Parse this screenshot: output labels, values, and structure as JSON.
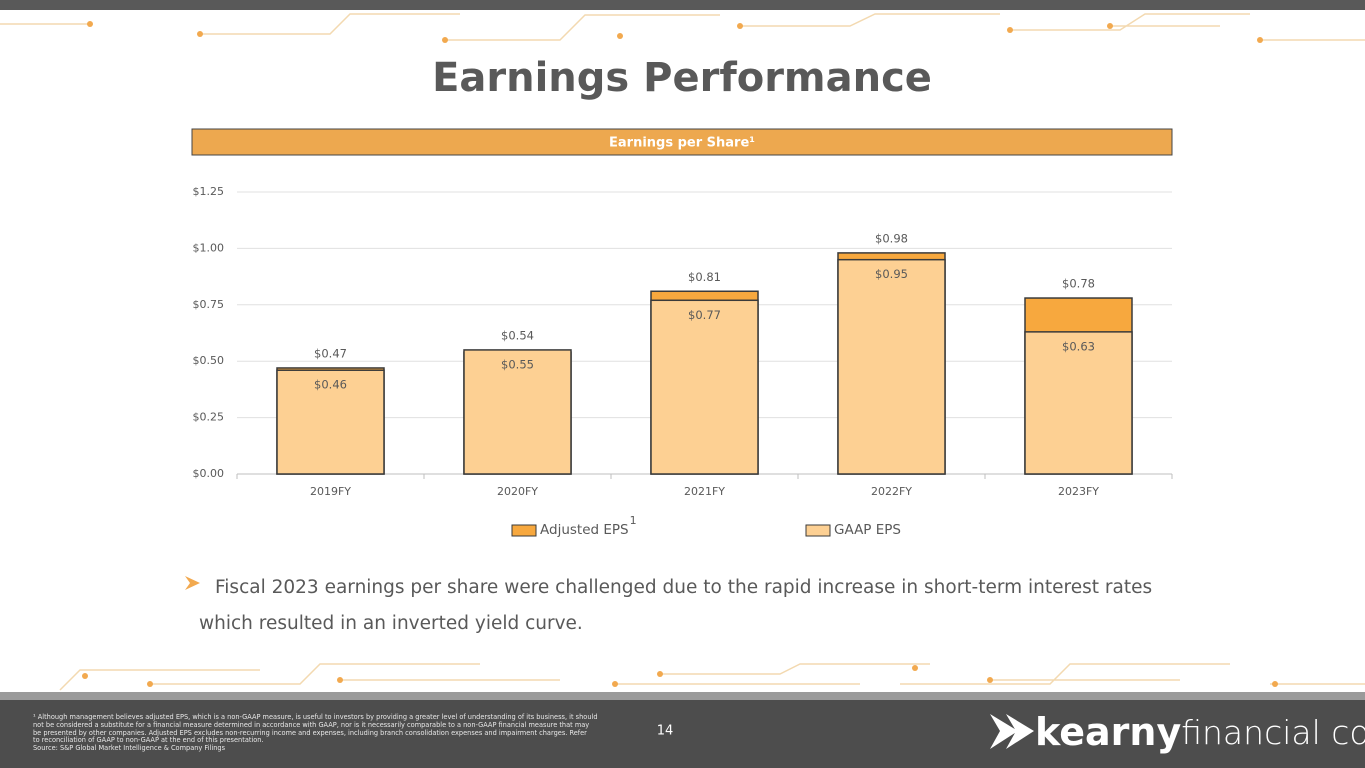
{
  "title": "Earnings Performance",
  "chart_data": {
    "type": "bar",
    "title": "Earnings per Share¹",
    "overlap": true,
    "categories": [
      "2019FY",
      "2020FY",
      "2021FY",
      "2022FY",
      "2023FY"
    ],
    "series": [
      {
        "name": "Adjusted EPS",
        "note_mark": "1",
        "color": "#f7a83e",
        "values": [
          0.47,
          0.54,
          0.81,
          0.98,
          0.78
        ],
        "value_labels": [
          "$0.47",
          "$0.54",
          "$0.81",
          "$0.98",
          "$0.78"
        ]
      },
      {
        "name": "GAAP EPS",
        "color": "#fdd093",
        "values": [
          0.46,
          0.55,
          0.77,
          0.95,
          0.63
        ],
        "value_labels": [
          "$0.46",
          "$0.55",
          "$0.77",
          "$0.95",
          "$0.63"
        ]
      }
    ],
    "ylim": [
      0,
      1.25
    ],
    "yticks": [
      {
        "value": 0,
        "label": "$0.00"
      },
      {
        "value": 0.25,
        "label": "$0.25"
      },
      {
        "value": 0.5,
        "label": "$0.50"
      },
      {
        "value": 0.75,
        "label": "$0.75"
      },
      {
        "value": 1,
        "label": "$1.00"
      },
      {
        "value": 1.25,
        "label": "$1.25"
      }
    ],
    "grid": true,
    "legend": "bottom"
  },
  "bullet": "Fiscal 2023 earnings per share were challenged due to the rapid increase in short-term interest rates which resulted in an inverted yield curve.",
  "footnote": [
    "¹ Although management believes adjusted EPS, which is a non-GAAP measure, is useful to investors by providing a greater level of understanding of its business, it should",
    "not be considered a substitute for a financial measure determined in accordance with GAAP, nor is it necessarily comparable to a non-GAAP financial measure that may",
    "be presented by other companies. Adjusted EPS excludes non-recurring income and expenses, including branch consolidation expenses and impairment charges.  Refer",
    "to reconciliation of GAAP to non-GAAP at the end of this presentation.",
    "Source: S&P Global Market Intelligence & Company Filings"
  ],
  "page_number": "14",
  "logo": {
    "bold": "kearny",
    "light": "financial corp."
  }
}
